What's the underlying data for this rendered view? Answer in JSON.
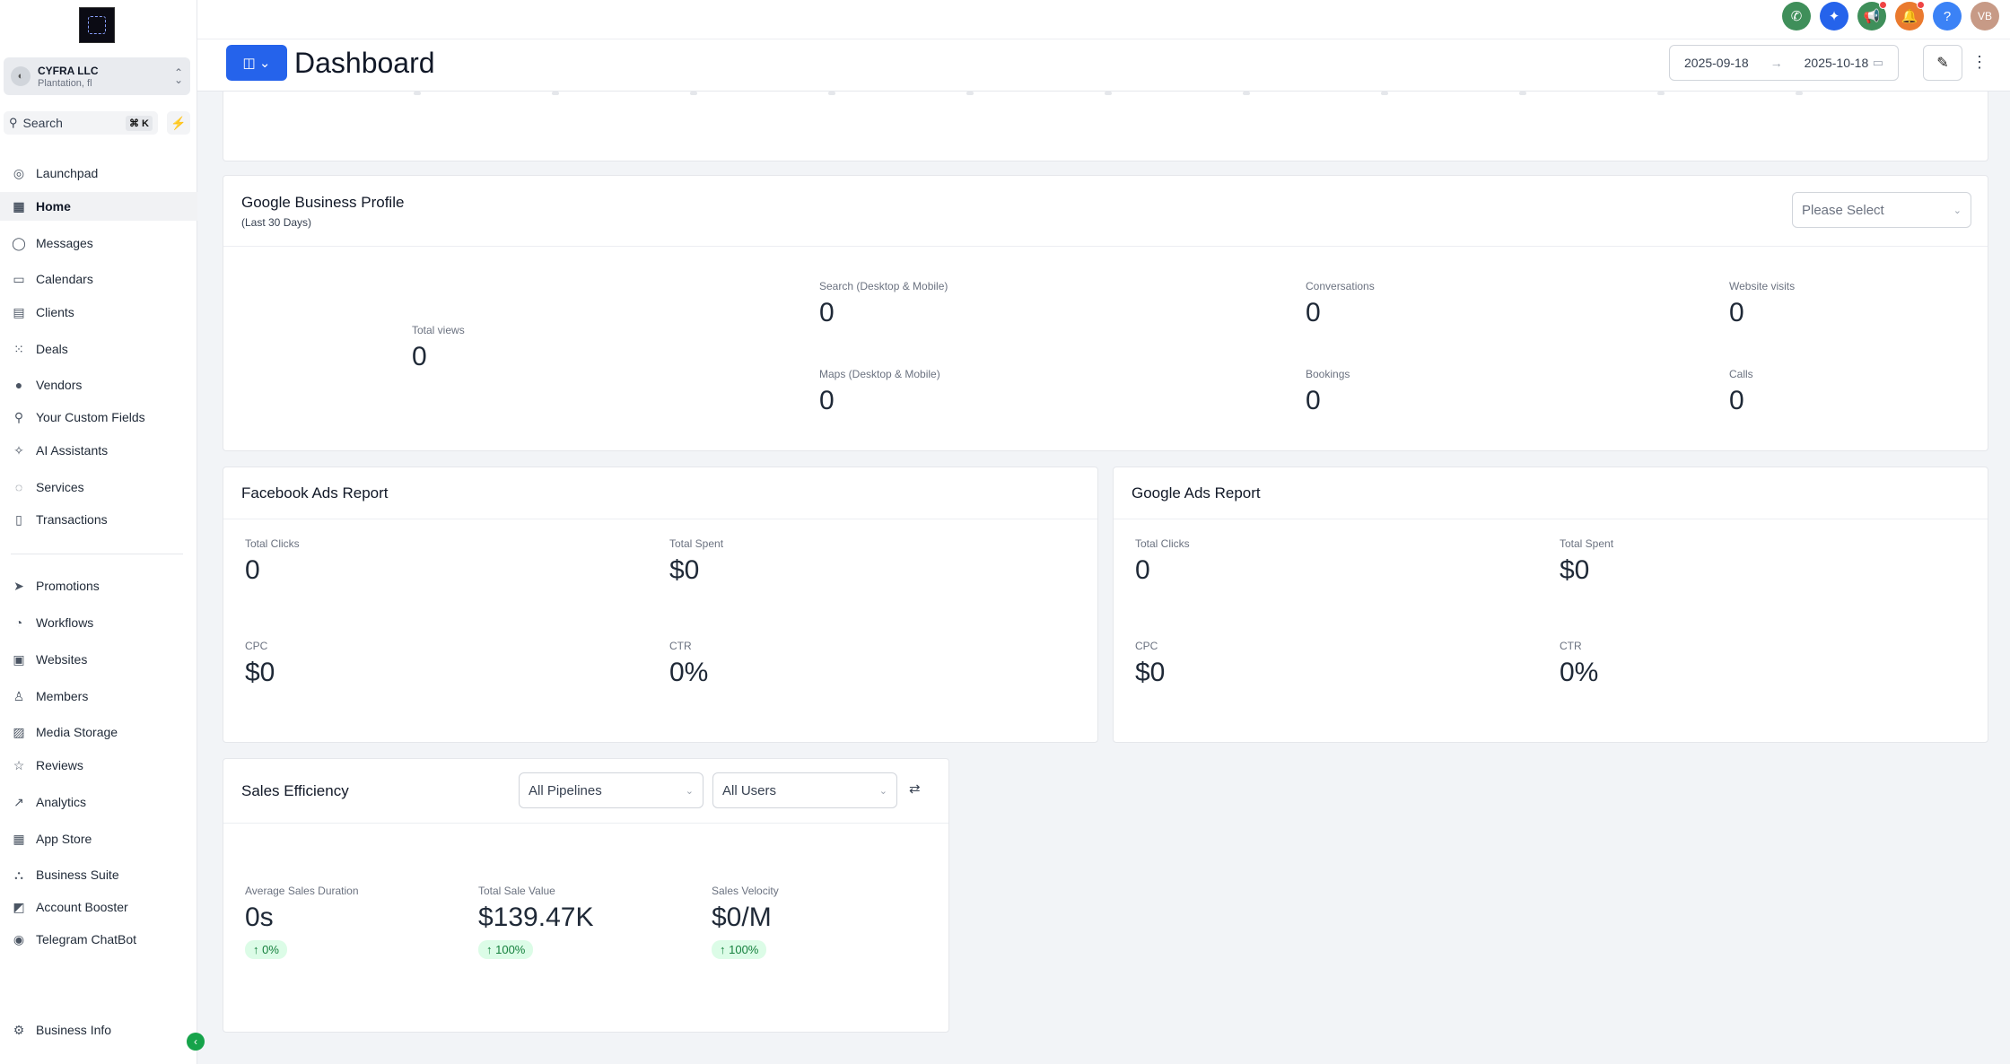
{
  "sidebar": {
    "location": {
      "name": "CYFRA LLC",
      "sub": "Plantation, fl",
      "avatar_icon": "store-icon"
    },
    "search": {
      "label": "Search",
      "shortcut": "⌘ K"
    },
    "items": [
      {
        "label": "Launchpad",
        "icon": "rocket-icon",
        "glyph": "◎"
      },
      {
        "label": "Home",
        "icon": "grid-icon",
        "glyph": "▦"
      },
      {
        "label": "Messages",
        "icon": "chat-icon",
        "glyph": "◯"
      },
      {
        "label": "Calendars",
        "icon": "calendar-icon",
        "glyph": "▭"
      },
      {
        "label": "Clients",
        "icon": "contacts-icon",
        "glyph": "▤"
      },
      {
        "label": "Deals",
        "icon": "pipeline-icon",
        "glyph": "⁙"
      },
      {
        "label": "Vendors",
        "icon": "vendor-icon",
        "glyph": "●"
      },
      {
        "label": "Your Custom Fields",
        "icon": "pin-icon",
        "glyph": "⚲"
      },
      {
        "label": "AI Assistants",
        "icon": "sparkle-icon",
        "glyph": "✧"
      },
      {
        "label": "Services",
        "icon": "headset-icon",
        "glyph": "◌"
      },
      {
        "label": "Transactions",
        "icon": "receipt-icon",
        "glyph": "▯"
      },
      {
        "label": "Promotions",
        "icon": "send-icon",
        "glyph": "➤"
      },
      {
        "label": "Workflows",
        "icon": "workflow-icon",
        "glyph": "◔"
      },
      {
        "label": "Websites",
        "icon": "website-icon",
        "glyph": "▣"
      },
      {
        "label": "Members",
        "icon": "member-icon",
        "glyph": "♙"
      },
      {
        "label": "Media Storage",
        "icon": "image-icon",
        "glyph": "▨"
      },
      {
        "label": "Reviews",
        "icon": "star-icon",
        "glyph": "☆"
      },
      {
        "label": "Analytics",
        "icon": "trend-icon",
        "glyph": "↗"
      },
      {
        "label": "App Store",
        "icon": "apps-icon",
        "glyph": "▦"
      },
      {
        "label": "Business Suite",
        "icon": "org-icon",
        "glyph": "⛬"
      },
      {
        "label": "Account Booster",
        "icon": "booster-icon",
        "glyph": "◩"
      },
      {
        "label": "Telegram ChatBot",
        "icon": "telegram-icon",
        "glyph": "◉"
      }
    ],
    "footer": {
      "label": "Business Info",
      "icon": "gear-icon",
      "glyph": "⚙"
    }
  },
  "topbar": {
    "icons": [
      {
        "name": "phone-icon",
        "glyph": "✆",
        "color": "#3f8f5a"
      },
      {
        "name": "magic-icon",
        "glyph": "✦",
        "color": "#2563eb"
      },
      {
        "name": "megaphone-icon",
        "glyph": "📢",
        "color": "#3f8f5a"
      },
      {
        "name": "bell-icon",
        "glyph": "🔔",
        "color": "#ea7a2e"
      },
      {
        "name": "help-icon",
        "glyph": "?",
        "color": "#3b82f6"
      },
      {
        "name": "avatar",
        "glyph": "VB",
        "color": "#c79a86"
      }
    ]
  },
  "header": {
    "title": "Dashboard",
    "date_start": "2025-09-18",
    "date_end": "2025-10-18"
  },
  "gbp": {
    "title": "Google Business Profile",
    "sub": "(Last 30 Days)",
    "select_placeholder": "Please Select",
    "total_views": {
      "label": "Total views",
      "value": "0"
    },
    "search": {
      "label": "Search (Desktop & Mobile)",
      "value": "0"
    },
    "maps": {
      "label": "Maps (Desktop & Mobile)",
      "value": "0"
    },
    "conversations": {
      "label": "Conversations",
      "value": "0"
    },
    "bookings": {
      "label": "Bookings",
      "value": "0"
    },
    "website_visits": {
      "label": "Website visits",
      "value": "0"
    },
    "calls": {
      "label": "Calls",
      "value": "0"
    }
  },
  "facebook": {
    "title": "Facebook Ads Report",
    "clicks": {
      "label": "Total Clicks",
      "value": "0"
    },
    "spent": {
      "label": "Total Spent",
      "value": "$0"
    },
    "cpc": {
      "label": "CPC",
      "value": "$0"
    },
    "ctr": {
      "label": "CTR",
      "value": "0%"
    }
  },
  "google_ads": {
    "title": "Google Ads Report",
    "clicks": {
      "label": "Total Clicks",
      "value": "0"
    },
    "spent": {
      "label": "Total Spent",
      "value": "$0"
    },
    "cpc": {
      "label": "CPC",
      "value": "$0"
    },
    "ctr": {
      "label": "CTR",
      "value": "0%"
    }
  },
  "sales": {
    "title": "Sales Efficiency",
    "pipelines": "All Pipelines",
    "users": "All Users",
    "duration": {
      "label": "Average Sales Duration",
      "value": "0s",
      "change": "↑ 0%"
    },
    "total": {
      "label": "Total Sale Value",
      "value": "$139.47K",
      "change": "↑ 100%"
    },
    "velocity": {
      "label": "Sales Velocity",
      "value": "$0/M",
      "change": "↑ 100%"
    }
  }
}
